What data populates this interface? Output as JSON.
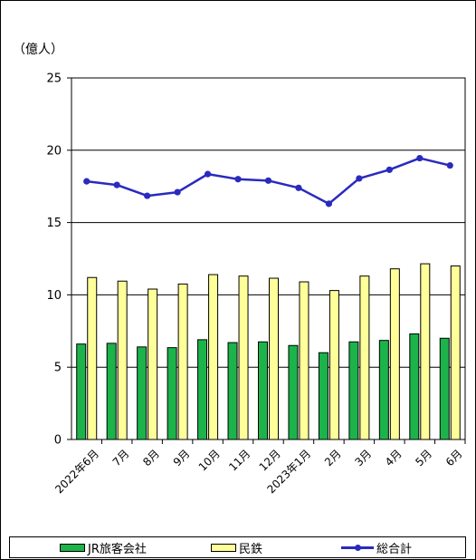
{
  "unit_label": "（億人）",
  "colors": {
    "jr": "#1BB34A",
    "private": "#FFFF99",
    "total": "#2A2ABF",
    "axis": "#000000",
    "grid": "#000000"
  },
  "chart_data": {
    "type": "bar",
    "title": "",
    "xlabel": "",
    "ylabel": "（億人）",
    "ylim": [
      0,
      25
    ],
    "yticks": [
      0,
      5,
      10,
      15,
      20,
      25
    ],
    "grid": true,
    "legend_position": "bottom",
    "categories": [
      "2022年6月",
      "7月",
      "8月",
      "9月",
      "10月",
      "11月",
      "12月",
      "2023年1月",
      "2月",
      "3月",
      "4月",
      "5月",
      "6月"
    ],
    "series": [
      {
        "name": "JR旅客会社",
        "type": "bar",
        "color": "#1BB34A",
        "values": [
          6.6,
          6.65,
          6.4,
          6.35,
          6.9,
          6.7,
          6.75,
          6.5,
          6.0,
          6.75,
          6.85,
          7.3,
          7.0
        ]
      },
      {
        "name": "民鉄",
        "type": "bar",
        "color": "#FFFF99",
        "values": [
          11.2,
          10.95,
          10.4,
          10.75,
          11.4,
          11.3,
          11.15,
          10.9,
          10.3,
          11.3,
          11.8,
          12.15,
          12.0
        ]
      },
      {
        "name": "総合計",
        "type": "line",
        "color": "#2A2ABF",
        "values": [
          17.85,
          17.6,
          16.85,
          17.1,
          18.35,
          18.0,
          17.9,
          17.4,
          16.3,
          18.05,
          18.65,
          19.45,
          18.95
        ]
      }
    ]
  },
  "legend": {
    "items": [
      {
        "label": "JR旅客会社"
      },
      {
        "label": "民鉄"
      },
      {
        "label": "総合計"
      }
    ]
  }
}
